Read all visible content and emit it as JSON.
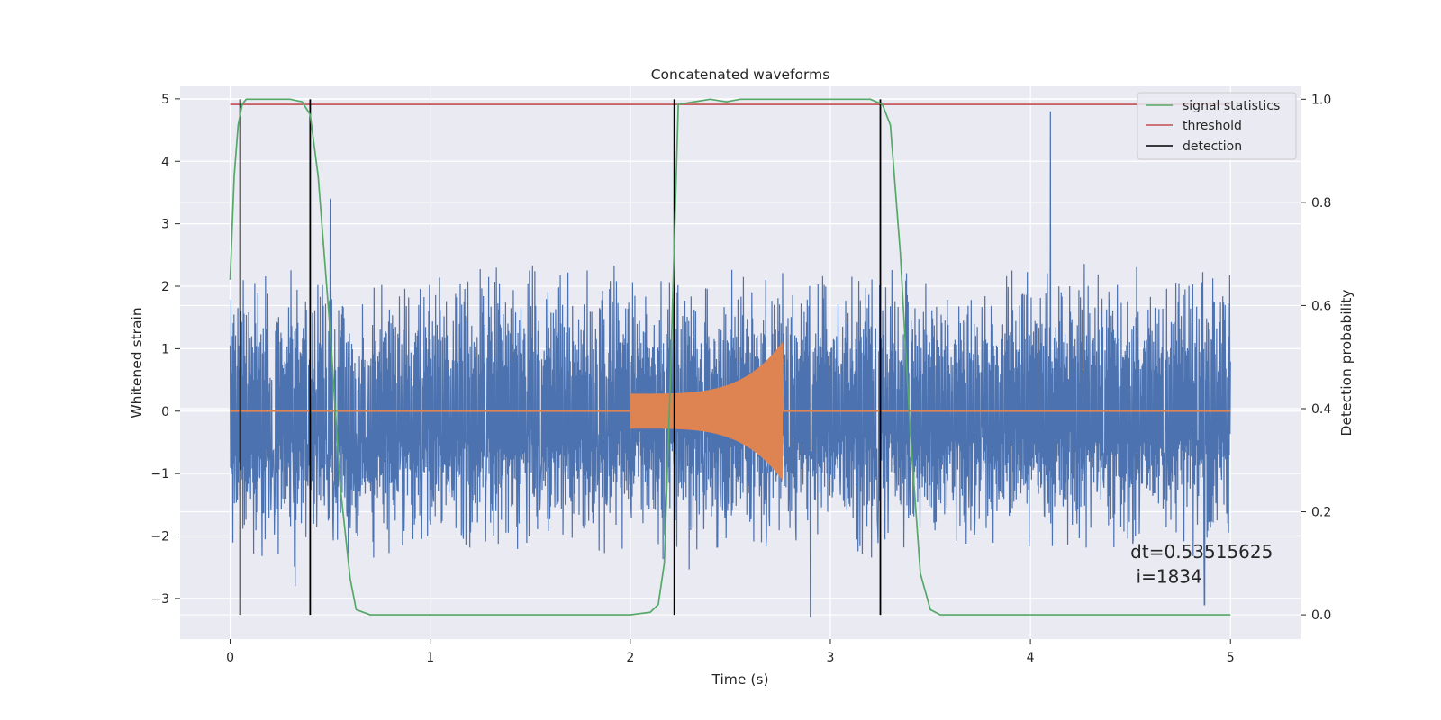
{
  "chart_data": {
    "type": "line",
    "title": "Concatenated waveforms",
    "xlabel": "Time (s)",
    "ylabel": "Whitened strain",
    "ylabel_right": "Detection probability",
    "xlim": [
      -0.25,
      5.35
    ],
    "ylim": [
      -3.65,
      5.2
    ],
    "ylim_right": [
      -0.047,
      1.025
    ],
    "x_ticks": [
      0,
      1,
      2,
      3,
      4,
      5
    ],
    "x_tick_labels": [
      "0",
      "1",
      "2",
      "3",
      "4",
      "5"
    ],
    "y_ticks": [
      -3,
      -2,
      -1,
      0,
      1,
      2,
      3,
      4,
      5
    ],
    "y_tick_labels": [
      "−3",
      "−2",
      "−1",
      "0",
      "1",
      "2",
      "3",
      "4",
      "5"
    ],
    "y2_ticks": [
      0.0,
      0.2,
      0.4,
      0.6,
      0.8,
      1.0
    ],
    "y2_tick_labels": [
      "0.0",
      "0.2",
      "0.4",
      "0.6",
      "0.8",
      "1.0"
    ],
    "grid": true,
    "legend_position": "top-right",
    "colors": {
      "background": "#eaeaf2",
      "grid": "#ffffff",
      "noise": "#4c72b0",
      "injection": "#dd8452",
      "signal_statistics": "#55a868",
      "threshold": "#c44e52",
      "detection": "#000000"
    },
    "series": [
      {
        "name": "signal statistics",
        "axis": "right",
        "x": [
          0.0,
          0.02,
          0.04,
          0.06,
          0.08,
          0.12,
          0.3,
          0.36,
          0.4,
          0.44,
          0.5,
          0.55,
          0.6,
          0.63,
          0.7,
          1.0,
          2.0,
          2.1,
          2.14,
          2.17,
          2.2,
          2.24,
          2.4,
          2.48,
          2.55,
          3.2,
          3.26,
          3.3,
          3.35,
          3.4,
          3.45,
          3.5,
          3.55,
          4.0,
          5.0
        ],
        "y": [
          0.65,
          0.85,
          0.95,
          0.99,
          1.0,
          1.0,
          1.0,
          0.995,
          0.97,
          0.85,
          0.55,
          0.25,
          0.07,
          0.01,
          0.0,
          0.0,
          0.0,
          0.005,
          0.02,
          0.1,
          0.45,
          0.99,
          1.0,
          0.995,
          1.0,
          1.0,
          0.99,
          0.95,
          0.7,
          0.35,
          0.08,
          0.01,
          0.0,
          0.0,
          0.0
        ]
      },
      {
        "name": "threshold",
        "axis": "right",
        "x": [
          0.0,
          5.0
        ],
        "y": [
          0.99,
          0.99
        ]
      },
      {
        "name": "detection",
        "axis": "right",
        "x": [
          0.05,
          0.4,
          2.22,
          3.25
        ],
        "y": [
          1.0,
          1.0,
          1.0,
          1.0
        ]
      },
      {
        "name": "",
        "axis": "left",
        "kind": "noise",
        "x_range": [
          0.0,
          5.0
        ],
        "envelope": 2.4,
        "peaks": [
          {
            "x": 0.5,
            "y": 3.4
          },
          {
            "x": 4.1,
            "y": 4.8
          },
          {
            "x": 2.9,
            "y": -3.3
          },
          {
            "x": 4.87,
            "y": -3.1
          }
        ]
      },
      {
        "name": "",
        "axis": "left",
        "kind": "injection",
        "x_range": [
          2.0,
          2.76
        ],
        "amplitude_start": 0.28,
        "amplitude_end": 1.1
      }
    ],
    "annotations": [
      {
        "text": "dt=0.53515625",
        "x": 4.5,
        "y": -2.35
      },
      {
        "text": " i=1834",
        "x": 4.5,
        "y": -2.75
      }
    ]
  }
}
